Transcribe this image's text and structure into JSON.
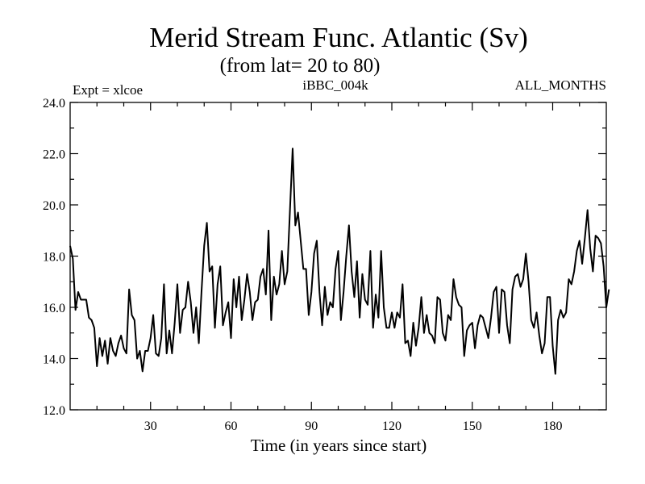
{
  "chart_data": {
    "type": "line",
    "title": "Merid Stream Func. Atlantic (Sv)",
    "subtitle": "(from lat= 20 to 80)",
    "label_left": "Expt = xlcoe",
    "label_center": "iBBC_004k",
    "label_right": "ALL_MONTHS",
    "xlabel": "Time (in years since start)",
    "ylabel": "",
    "xlim": [
      0,
      200
    ],
    "ylim": [
      12.0,
      24.0
    ],
    "xticks": [
      30,
      60,
      90,
      120,
      150,
      180
    ],
    "yticks": [
      12.0,
      14.0,
      16.0,
      18.0,
      20.0,
      22.0,
      24.0
    ],
    "series": [
      {
        "name": "Merid Stream Func. Atlantic",
        "color": "#000000",
        "x_start": 0,
        "x_step": 1,
        "values": [
          18.4,
          17.9,
          15.9,
          16.6,
          16.3,
          16.3,
          16.3,
          15.6,
          15.5,
          15.2,
          13.7,
          14.8,
          14.1,
          14.7,
          13.8,
          14.8,
          14.3,
          14.1,
          14.6,
          14.9,
          14.4,
          14.2,
          16.7,
          15.7,
          15.5,
          14.0,
          14.3,
          13.5,
          14.3,
          14.3,
          14.8,
          15.7,
          14.2,
          14.1,
          14.8,
          16.9,
          14.2,
          15.1,
          14.2,
          15.4,
          16.9,
          15.0,
          15.9,
          16.0,
          17.0,
          16.2,
          15.0,
          16.0,
          14.6,
          16.6,
          18.4,
          19.3,
          17.4,
          17.6,
          15.2,
          16.9,
          17.6,
          15.3,
          15.8,
          16.2,
          14.8,
          17.1,
          16.0,
          17.2,
          15.5,
          16.3,
          17.3,
          16.6,
          15.5,
          16.2,
          16.3,
          17.2,
          17.5,
          16.5,
          19.0,
          15.5,
          17.2,
          16.5,
          16.9,
          18.2,
          16.9,
          17.4,
          19.8,
          22.2,
          19.2,
          19.7,
          18.6,
          17.5,
          17.5,
          15.7,
          16.6,
          18.1,
          18.6,
          16.6,
          15.3,
          16.8,
          15.7,
          16.2,
          16.0,
          17.5,
          18.2,
          15.5,
          16.6,
          18.0,
          19.2,
          17.4,
          16.4,
          17.8,
          15.6,
          17.3,
          16.3,
          16.1,
          18.2,
          15.2,
          16.5,
          15.6,
          18.2,
          16.0,
          15.2,
          15.2,
          15.8,
          15.2,
          15.8,
          15.6,
          16.9,
          14.6,
          14.7,
          14.1,
          15.4,
          14.5,
          15.2,
          16.4,
          15.0,
          15.7,
          15.0,
          14.9,
          14.6,
          16.4,
          16.3,
          15.0,
          14.7,
          15.7,
          15.5,
          17.1,
          16.4,
          16.1,
          16.0,
          14.1,
          15.1,
          15.3,
          15.4,
          14.4,
          15.3,
          15.7,
          15.6,
          15.2,
          14.8,
          15.6,
          16.6,
          16.8,
          15.0,
          16.7,
          16.6,
          15.3,
          14.6,
          16.7,
          17.2,
          17.3,
          16.8,
          17.1,
          18.1,
          17.0,
          15.5,
          15.2,
          15.8,
          14.9,
          14.2,
          14.6,
          16.4,
          16.4,
          14.5,
          13.4,
          15.5,
          15.9,
          15.6,
          15.8,
          17.1,
          16.9,
          17.4,
          18.2,
          18.6,
          17.7,
          18.7,
          19.8,
          18.3,
          17.4,
          18.8,
          18.7,
          18.5,
          17.6,
          16.0,
          16.7
        ]
      }
    ],
    "grid": false,
    "legend": "none"
  }
}
